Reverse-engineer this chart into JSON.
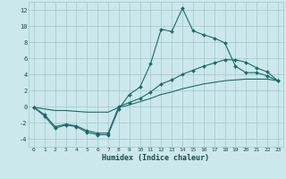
{
  "xlabel": "Humidex (Indice chaleur)",
  "bg_color": "#cce8ec",
  "grid_color": "#a0c8cc",
  "line_color": "#1a6b6b",
  "xlim": [
    -0.5,
    23.5
  ],
  "ylim": [
    -5,
    13
  ],
  "xticks": [
    0,
    1,
    2,
    3,
    4,
    5,
    6,
    7,
    8,
    9,
    10,
    11,
    12,
    13,
    14,
    15,
    16,
    17,
    18,
    19,
    20,
    21,
    22,
    23
  ],
  "yticks": [
    -4,
    -2,
    0,
    2,
    4,
    6,
    8,
    10,
    12
  ],
  "line1_x": [
    0,
    1,
    2,
    3,
    4,
    5,
    6,
    7,
    8,
    9,
    10,
    11,
    12,
    13,
    14,
    15,
    16,
    17,
    18,
    19,
    20,
    21,
    22,
    23
  ],
  "line1_y": [
    -0.1,
    -1.2,
    -2.7,
    -2.3,
    -2.5,
    -3.2,
    -3.5,
    -3.5,
    -0.3,
    1.5,
    2.4,
    5.3,
    9.6,
    9.3,
    12.2,
    9.4,
    8.9,
    8.5,
    7.9,
    5.0,
    4.2,
    4.2,
    3.8,
    3.2
  ],
  "line2_x": [
    0,
    1,
    2,
    3,
    4,
    5,
    6,
    7,
    8,
    9,
    10,
    11,
    12,
    13,
    14,
    15,
    16,
    17,
    18,
    19,
    20,
    21,
    22,
    23
  ],
  "line2_y": [
    -0.1,
    -1.0,
    -2.5,
    -2.2,
    -2.4,
    -3.0,
    -3.3,
    -3.3,
    0.0,
    0.5,
    1.0,
    1.8,
    2.8,
    3.3,
    4.0,
    4.5,
    5.0,
    5.4,
    5.8,
    5.8,
    5.5,
    4.8,
    4.3,
    3.2
  ],
  "line3_x": [
    0,
    1,
    2,
    3,
    4,
    5,
    6,
    7,
    8,
    9,
    10,
    11,
    12,
    13,
    14,
    15,
    16,
    17,
    18,
    19,
    20,
    21,
    22,
    23
  ],
  "line3_y": [
    -0.1,
    -0.3,
    -0.5,
    -0.5,
    -0.6,
    -0.7,
    -0.7,
    -0.7,
    -0.1,
    0.2,
    0.6,
    1.0,
    1.5,
    1.8,
    2.2,
    2.5,
    2.8,
    3.0,
    3.2,
    3.3,
    3.4,
    3.4,
    3.4,
    3.2
  ]
}
